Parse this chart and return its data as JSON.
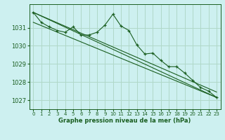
{
  "title": "Graphe pression niveau de la mer (hPa)",
  "background_color": "#cdf0f0",
  "grid_color": "#b0d8c8",
  "line_color": "#1a5e20",
  "xlim": [
    -0.5,
    23.5
  ],
  "ylim": [
    1026.5,
    1032.3
  ],
  "yticks": [
    1027,
    1028,
    1029,
    1030,
    1031
  ],
  "xticks": [
    0,
    1,
    2,
    3,
    4,
    5,
    6,
    7,
    8,
    9,
    10,
    11,
    12,
    13,
    14,
    15,
    16,
    17,
    18,
    19,
    20,
    21,
    22,
    23
  ],
  "series_main": {
    "x": [
      0,
      1,
      2,
      3,
      4,
      5,
      6,
      7,
      8,
      9,
      10,
      11,
      12,
      13,
      14,
      15,
      16,
      17,
      18,
      19,
      20,
      21,
      22,
      23
    ],
    "y": [
      1031.85,
      1031.3,
      1031.05,
      1030.85,
      1030.75,
      1031.05,
      1030.6,
      1030.6,
      1030.75,
      1031.15,
      1031.75,
      1031.1,
      1030.85,
      1030.05,
      1029.55,
      1029.6,
      1029.2,
      1028.85,
      1028.85,
      1028.5,
      1028.1,
      1027.7,
      1027.5,
      1027.15
    ]
  },
  "trend_lines": [
    {
      "x": [
        0,
        23
      ],
      "y": [
        1031.85,
        1027.15
      ]
    },
    {
      "x": [
        0,
        23
      ],
      "y": [
        1031.85,
        1027.45
      ]
    },
    {
      "x": [
        0,
        23
      ],
      "y": [
        1031.3,
        1027.15
      ]
    }
  ]
}
